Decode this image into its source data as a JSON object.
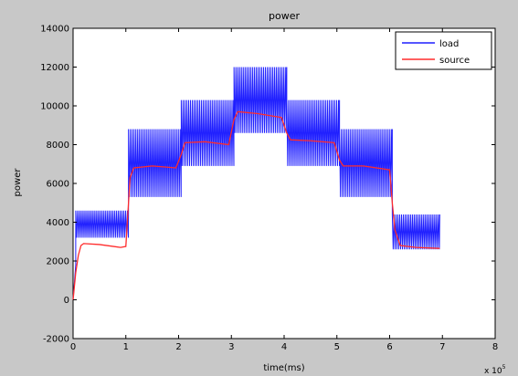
{
  "chart_data": {
    "type": "line",
    "title": "power",
    "xlabel": "time(ms)",
    "ylabel": "power",
    "x_multiplier_label": "x 10",
    "x_multiplier_exponent": "5",
    "xlim": [
      0,
      8
    ],
    "ylim": [
      -2000,
      14000
    ],
    "x_ticks": [
      0,
      1,
      2,
      3,
      4,
      5,
      6,
      7,
      8
    ],
    "y_ticks": [
      -2000,
      0,
      2000,
      4000,
      6000,
      8000,
      10000,
      12000,
      14000
    ],
    "grid": false,
    "legend_position": "top-right",
    "series": [
      {
        "name": "load",
        "color": "#1f1fff",
        "segments": [
          {
            "x_start": 0.0,
            "x_end": 0.05,
            "upper": 1800,
            "lower": 0,
            "style": "ramp"
          },
          {
            "x_start": 0.05,
            "x_end": 1.05,
            "upper": 4600,
            "lower": 3200,
            "style": "oscillating"
          },
          {
            "x_start": 1.05,
            "x_end": 2.05,
            "upper": 8800,
            "lower": 5300,
            "style": "oscillating"
          },
          {
            "x_start": 2.05,
            "x_end": 3.05,
            "upper": 10300,
            "lower": 6900,
            "style": "oscillating"
          },
          {
            "x_start": 3.05,
            "x_end": 4.05,
            "upper": 12000,
            "lower": 8600,
            "style": "oscillating"
          },
          {
            "x_start": 4.05,
            "x_end": 5.05,
            "upper": 10300,
            "lower": 6900,
            "style": "oscillating"
          },
          {
            "x_start": 5.05,
            "x_end": 6.05,
            "upper": 8800,
            "lower": 5300,
            "style": "oscillating"
          },
          {
            "x_start": 6.05,
            "x_end": 6.95,
            "upper": 4400,
            "lower": 2600,
            "style": "oscillating"
          }
        ]
      },
      {
        "name": "source",
        "color": "#ff2b2b",
        "points": [
          [
            0.0,
            0
          ],
          [
            0.05,
            1400
          ],
          [
            0.1,
            2300
          ],
          [
            0.15,
            2800
          ],
          [
            0.2,
            2900
          ],
          [
            0.5,
            2850
          ],
          [
            0.9,
            2700
          ],
          [
            1.0,
            2750
          ],
          [
            1.08,
            6300
          ],
          [
            1.15,
            6800
          ],
          [
            1.5,
            6900
          ],
          [
            1.95,
            6800
          ],
          [
            2.05,
            7500
          ],
          [
            2.12,
            8100
          ],
          [
            2.5,
            8150
          ],
          [
            2.95,
            8000
          ],
          [
            3.05,
            9300
          ],
          [
            3.12,
            9700
          ],
          [
            3.5,
            9600
          ],
          [
            3.95,
            9400
          ],
          [
            4.05,
            8600
          ],
          [
            4.12,
            8250
          ],
          [
            4.5,
            8200
          ],
          [
            4.95,
            8100
          ],
          [
            5.05,
            7200
          ],
          [
            5.12,
            6900
          ],
          [
            5.5,
            6900
          ],
          [
            6.0,
            6700
          ],
          [
            6.05,
            5000
          ],
          [
            6.1,
            3600
          ],
          [
            6.2,
            2800
          ],
          [
            6.5,
            2700
          ],
          [
            6.95,
            2650
          ]
        ]
      }
    ]
  }
}
